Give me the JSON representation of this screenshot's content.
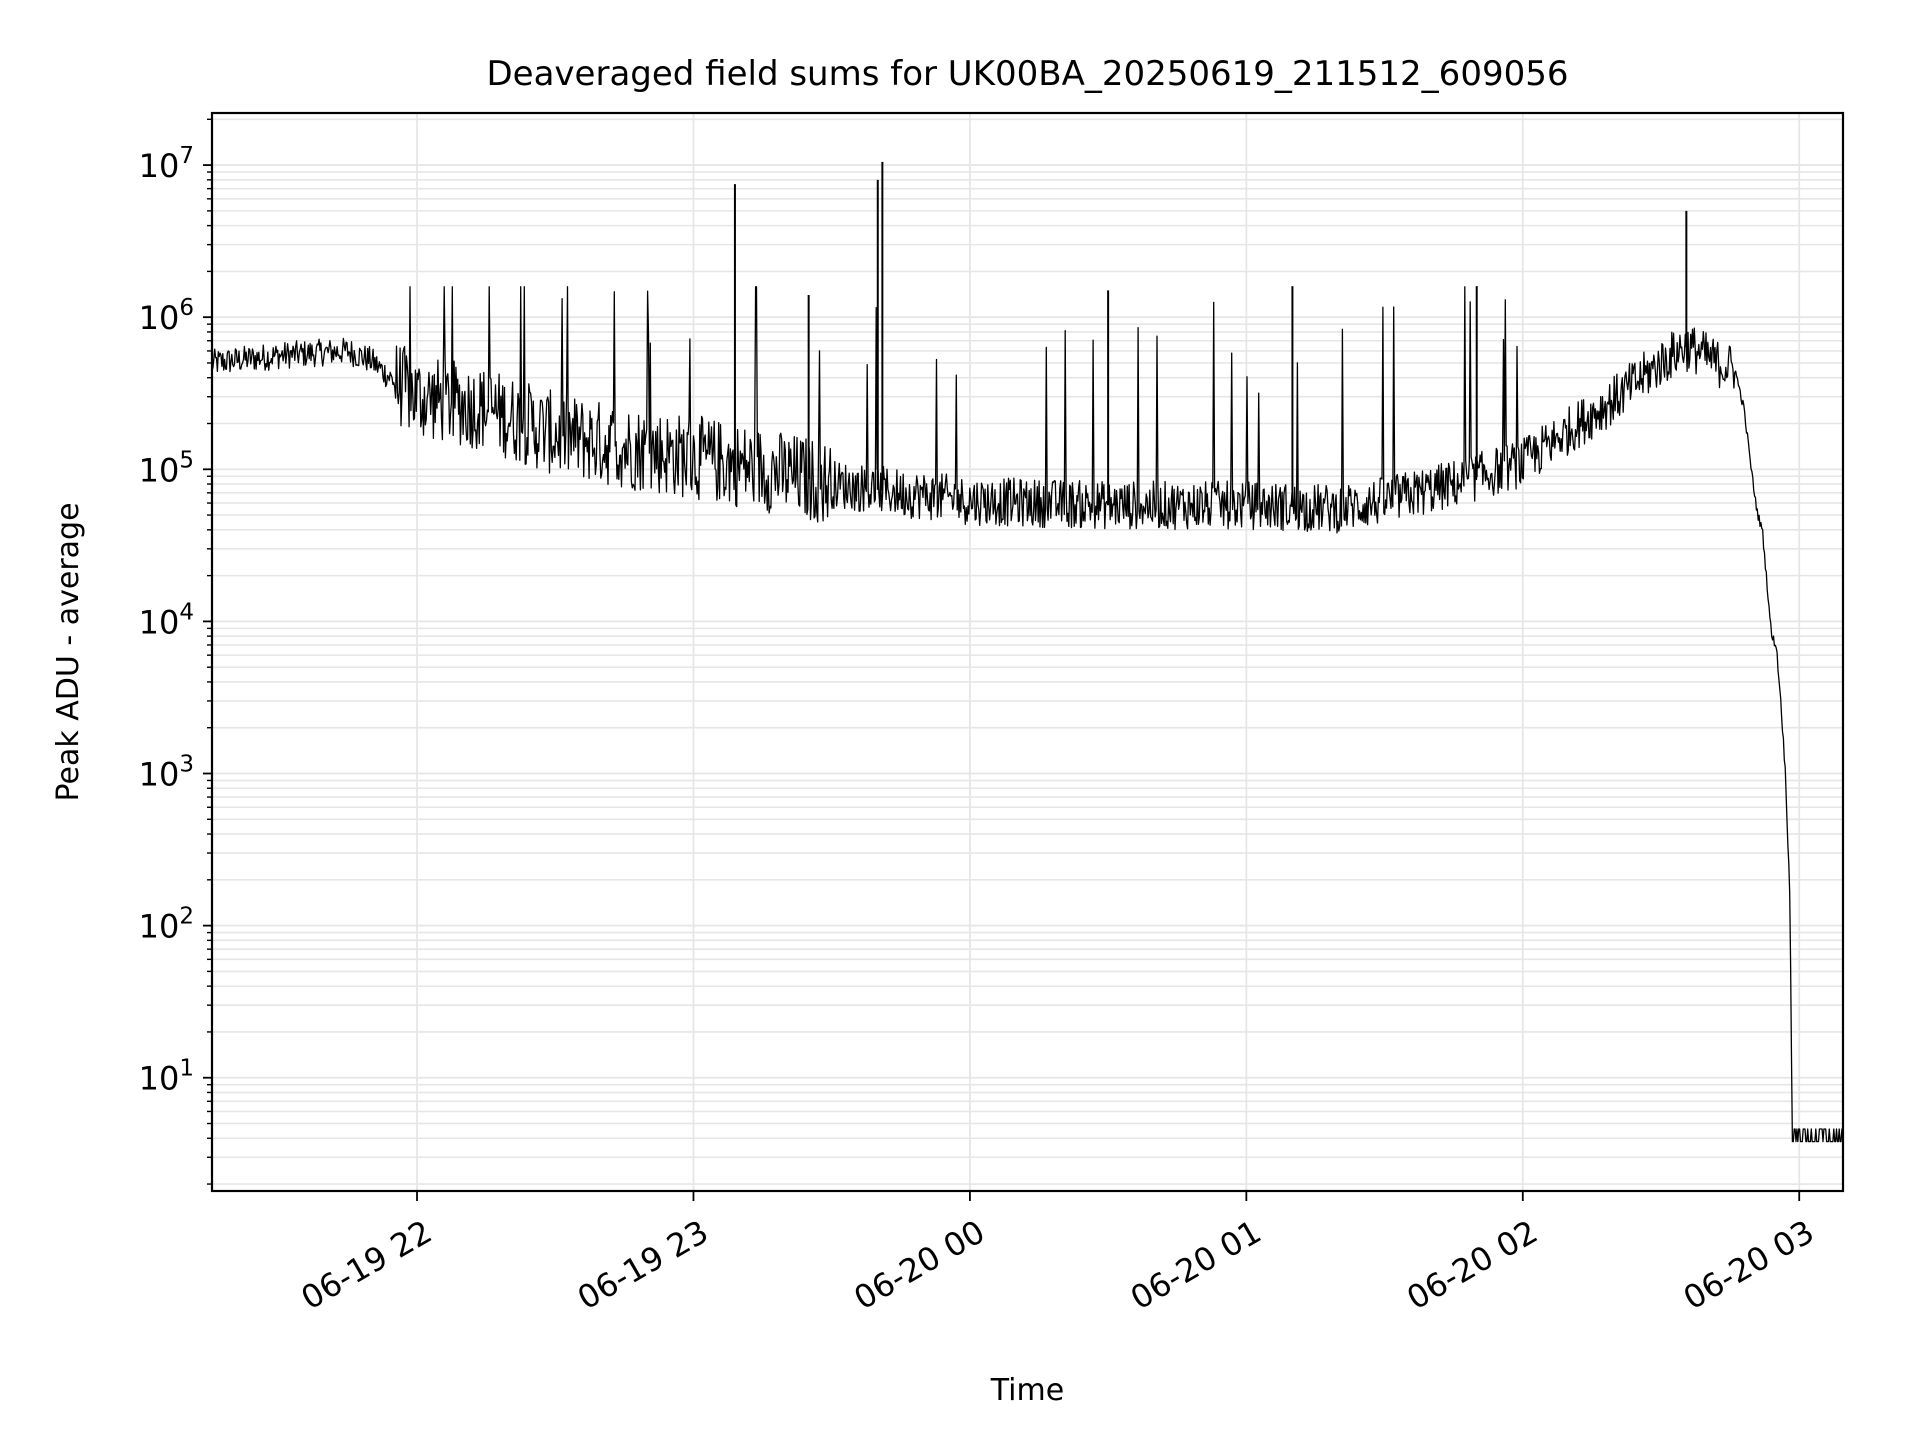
{
  "chart_data": {
    "type": "line",
    "title": "Deaveraged field sums for UK00BA_20250619_211512_609056",
    "xlabel": "Time",
    "ylabel": "Peak ADU - average",
    "yscale": "log",
    "ylim": [
      1.8,
      22000000
    ],
    "xlim": [
      "2025-06-19T21:15:30",
      "2025-06-20T03:09:30"
    ],
    "grid": true,
    "line_color": "#000000",
    "grid_color": "#e6e6e6",
    "x_ticks": [
      {
        "t": "2025-06-19T22:00:00",
        "label": "06-19 22"
      },
      {
        "t": "2025-06-19T23:00:00",
        "label": "06-19 23"
      },
      {
        "t": "2025-06-20T00:00:00",
        "label": "06-20 00"
      },
      {
        "t": "2025-06-20T01:00:00",
        "label": "06-20 01"
      },
      {
        "t": "2025-06-20T02:00:00",
        "label": "06-20 02"
      },
      {
        "t": "2025-06-20T03:00:00",
        "label": "06-20 03"
      }
    ],
    "y_ticks": [
      {
        "value": 10,
        "base": "10",
        "exp": "1"
      },
      {
        "value": 100,
        "base": "10",
        "exp": "2"
      },
      {
        "value": 1000,
        "base": "10",
        "exp": "3"
      },
      {
        "value": 10000,
        "base": "10",
        "exp": "4"
      },
      {
        "value": 100000,
        "base": "10",
        "exp": "5"
      },
      {
        "value": 1000000,
        "base": "10",
        "exp": "6"
      },
      {
        "value": 10000000,
        "base": "10",
        "exp": "7"
      }
    ],
    "series": [
      {
        "values": [
          {
            "t": "2025-06-19T21:15:30",
            "y": 500000
          },
          {
            "t": "2025-06-19T21:30:00",
            "y": 560000
          },
          {
            "t": "2025-06-19T21:45:00",
            "y": 600000
          },
          {
            "t": "2025-06-19T21:50:00",
            "y": 520000
          },
          {
            "t": "2025-06-19T21:55:00",
            "y": 380000
          },
          {
            "t": "2025-06-19T22:00:00",
            "y": 300000
          },
          {
            "t": "2025-06-19T22:15:00",
            "y": 250000
          },
          {
            "t": "2025-06-19T22:30:00",
            "y": 170000
          },
          {
            "t": "2025-06-19T22:45:00",
            "y": 140000
          },
          {
            "t": "2025-06-19T23:00:00",
            "y": 120000
          },
          {
            "t": "2025-06-19T23:15:00",
            "y": 100000
          },
          {
            "t": "2025-06-19T23:30:00",
            "y": 80000
          },
          {
            "t": "2025-06-19T23:45:00",
            "y": 70000
          },
          {
            "t": "2025-06-20T00:00:00",
            "y": 62000
          },
          {
            "t": "2025-06-20T00:30:00",
            "y": 58000
          },
          {
            "t": "2025-06-20T01:00:00",
            "y": 58000
          },
          {
            "t": "2025-06-20T01:20:00",
            "y": 55000
          },
          {
            "t": "2025-06-20T01:30:00",
            "y": 62000
          },
          {
            "t": "2025-06-20T01:45:00",
            "y": 80000
          },
          {
            "t": "2025-06-20T02:00:00",
            "y": 110000
          },
          {
            "t": "2025-06-20T02:10:00",
            "y": 180000
          },
          {
            "t": "2025-06-20T02:20:00",
            "y": 290000
          },
          {
            "t": "2025-06-20T02:30:00",
            "y": 500000
          },
          {
            "t": "2025-06-20T02:35:00",
            "y": 640000
          },
          {
            "t": "2025-06-20T02:38:00",
            "y": 600000
          },
          {
            "t": "2025-06-20T02:42:00",
            "y": 500000
          },
          {
            "t": "2025-06-20T02:46:00",
            "y": 460000
          },
          {
            "t": "2025-06-20T02:48:00",
            "y": 250000
          },
          {
            "t": "2025-06-20T02:50:00",
            "y": 80000
          },
          {
            "t": "2025-06-20T02:51:00",
            "y": 50000
          },
          {
            "t": "2025-06-20T02:52:00",
            "y": 40000
          },
          {
            "t": "2025-06-20T02:54:00",
            "y": 8000
          },
          {
            "t": "2025-06-20T02:55:00",
            "y": 7000
          },
          {
            "t": "2025-06-20T02:56:00",
            "y": 3000
          },
          {
            "t": "2025-06-20T02:57:00",
            "y": 1000
          },
          {
            "t": "2025-06-20T02:58:00",
            "y": 150
          },
          {
            "t": "2025-06-20T02:58:30",
            "y": 3.8
          },
          {
            "t": "2025-06-20T03:09:30",
            "y": 3.8
          }
        ]
      }
    ],
    "spikes": [
      {
        "t": "2025-06-19T23:09:00",
        "y": 7500000
      },
      {
        "t": "2025-06-19T23:41:00",
        "y": 10500000
      },
      {
        "t": "2025-06-19T23:40:00",
        "y": 8000000
      },
      {
        "t": "2025-06-20T02:35:30",
        "y": 5000000
      },
      {
        "t": "2025-06-19T23:25:00",
        "y": 1400000
      },
      {
        "t": "2025-06-20T00:30:00",
        "y": 1500000
      },
      {
        "t": "2025-06-20T01:10:00",
        "y": 1600000
      },
      {
        "t": "2025-06-20T01:50:00",
        "y": 1600000
      }
    ]
  }
}
